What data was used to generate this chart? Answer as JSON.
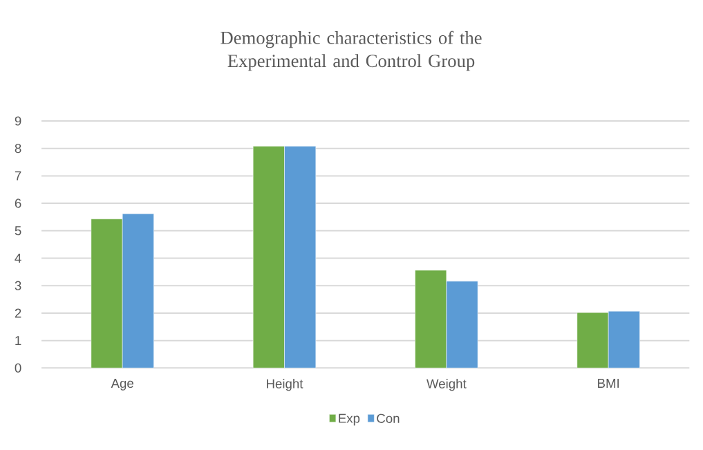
{
  "chart_data": {
    "type": "bar",
    "title": "Demographic characteristics of the Experimental and Control Group",
    "categories": [
      "Age",
      "Height",
      "Weight",
      "BMI"
    ],
    "series": [
      {
        "name": "Exp",
        "color": "#70ad47",
        "values": [
          5.43,
          8.08,
          3.56,
          2.02
        ]
      },
      {
        "name": "Con",
        "color": "#5b9bd5",
        "values": [
          5.62,
          8.08,
          3.16,
          2.07
        ]
      }
    ],
    "ylim": [
      0,
      9
    ],
    "yticks": [
      0,
      1,
      2,
      3,
      4,
      5,
      6,
      7,
      8,
      9
    ],
    "grid": "y",
    "legend": "bottom"
  }
}
